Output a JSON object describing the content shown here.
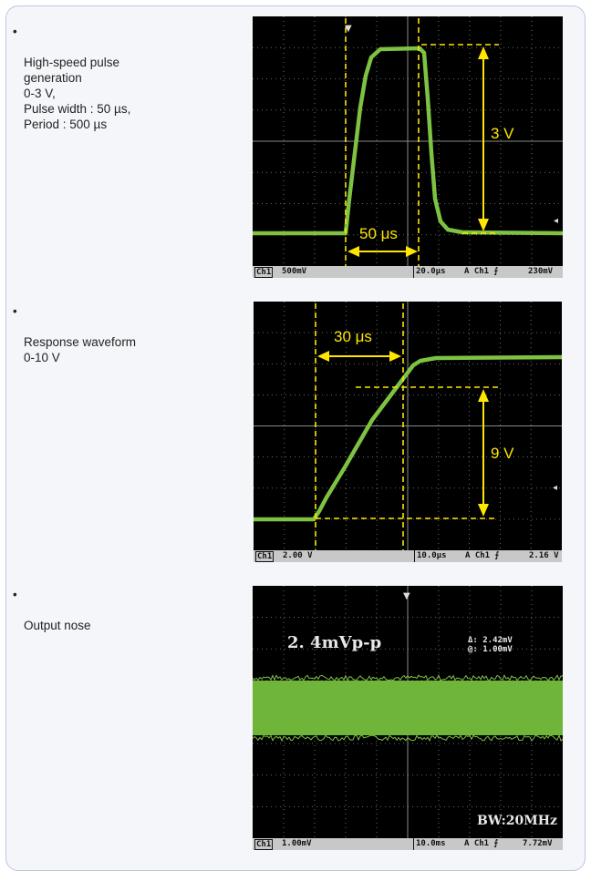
{
  "panels": [
    {
      "caption": "High-speed pulse\ngeneration\n0-3 V,\nPulse width : 50 µs,\nPeriod : 500 µs",
      "scope": {
        "annotations": {
          "amplitude": "3 V",
          "width": "50 μs"
        },
        "status": {
          "channel": "Ch1",
          "volts_div": "500mV",
          "time_div": "20.0µs",
          "trigger": "A  Ch1  ⨍",
          "trig_level": "230mV"
        }
      }
    },
    {
      "caption": "Response waveform\n0-10 V",
      "scope": {
        "annotations": {
          "amplitude": "9 V",
          "width": "30 μs"
        },
        "status": {
          "channel": "Ch1",
          "volts_div": "2.00 V",
          "time_div": "10.0µs",
          "trigger": "A  Ch1  ⨍",
          "trig_level": "2.16 V"
        }
      }
    },
    {
      "caption": "Output nose",
      "scope": {
        "annotations": {
          "pp_label": "2. 4mVp-p",
          "delta": "Δ:  2.42mV",
          "at": "@:  1.00mV",
          "bw": "BW:20MHz"
        },
        "status": {
          "channel": "Ch1",
          "volts_div": "1.00mV",
          "time_div": "10.0ms",
          "trigger": "A  Ch1  ⨍",
          "trig_level": "7.72mV"
        }
      }
    }
  ],
  "colors": {
    "trace": "#7ec242",
    "annotation": "#ffe600",
    "grid": "#8a8a8a"
  }
}
